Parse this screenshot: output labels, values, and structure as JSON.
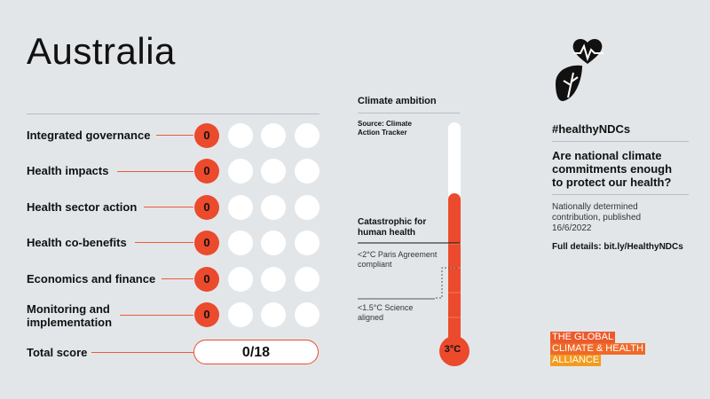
{
  "country": "Australia",
  "rows": [
    {
      "label": "Integrated governance",
      "score": "0"
    },
    {
      "label": "Health impacts",
      "score": "0"
    },
    {
      "label": "Health sector action",
      "score": "0"
    },
    {
      "label": "Health co-benefits",
      "score": "0"
    },
    {
      "label": "Economics and finance",
      "score": "0"
    },
    {
      "label": "Monitoring and implementation",
      "score": "0"
    }
  ],
  "total": {
    "label": "Total score",
    "value": "0/18"
  },
  "climate": {
    "heading": "Climate ambition",
    "source": "Source: Climate Action Tracker",
    "catastrophic": "Catastrophic for human health",
    "paris": "<2°C Paris Agreement compliant",
    "science": "<1.5°C Science aligned",
    "value": "3°C"
  },
  "right": {
    "hashtag": "#healthyNDCs",
    "question": "Are national climate commitments enough to protect our health?",
    "ndc": "Nationally determined contribution, published 16/6/2022",
    "details": "Full details: bit.ly/HealthyNDCs"
  },
  "logo": {
    "line1": "THE GLOBAL",
    "line2": "CLIMATE & HEALTH",
    "line3": "ALLIANCE"
  },
  "colors": {
    "accent": "#ec4a2c",
    "logo_orange": "#f39a1f",
    "background": "#e3e6e9"
  },
  "icons": [
    "heart-leaf-icon"
  ]
}
